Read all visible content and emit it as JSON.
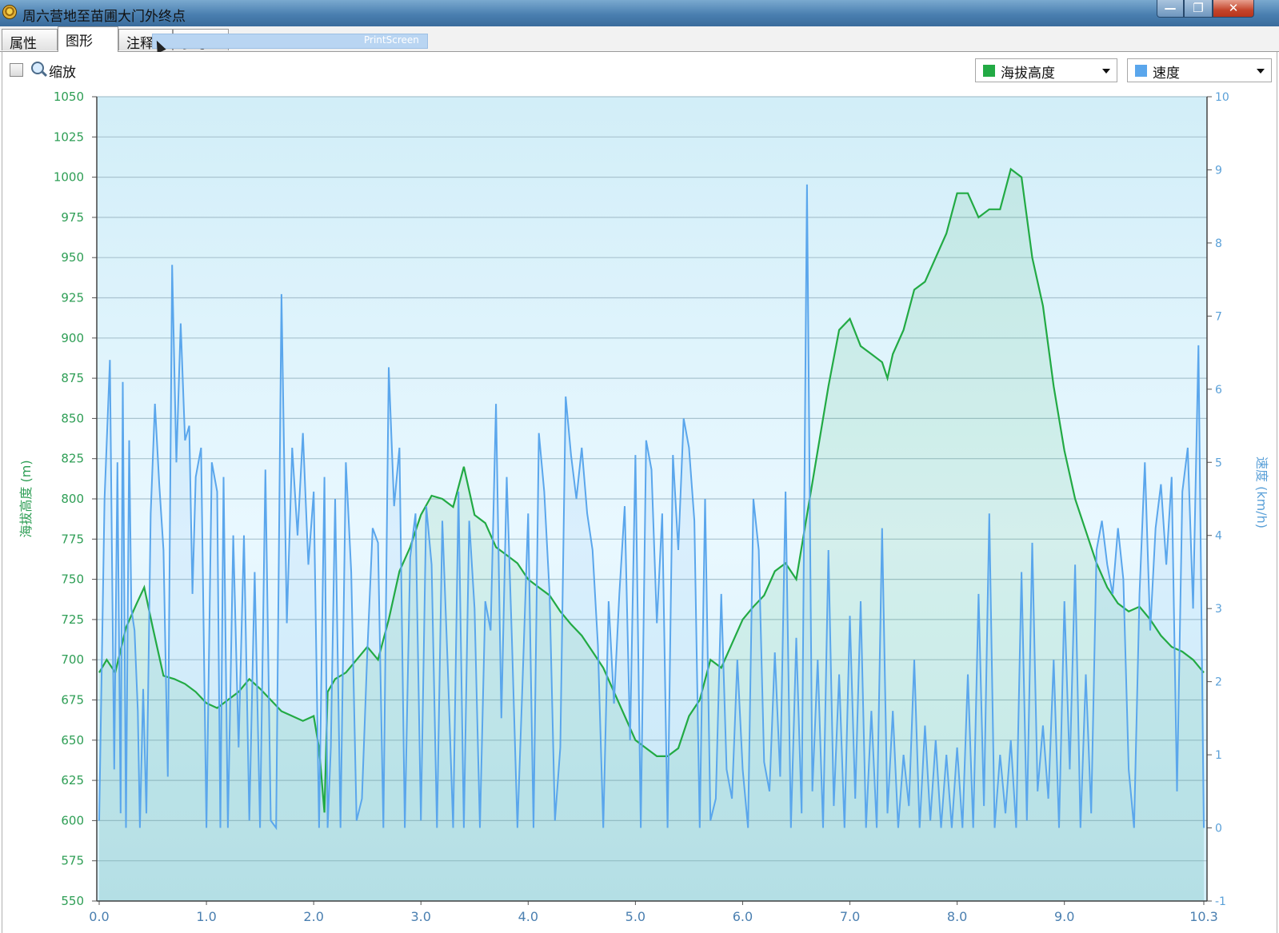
{
  "window": {
    "title": "周六营地至苗圃大门外终点"
  },
  "tabs": [
    {
      "label": "属性"
    },
    {
      "label": "图形"
    },
    {
      "label": "注释"
    },
    {
      "label": "参考"
    }
  ],
  "overlay": {
    "printscreen_label": "PrintScreen"
  },
  "toolbar": {
    "zoom_label": "缩放"
  },
  "selectors": {
    "left_label": "海拔高度",
    "right_label": "速度"
  },
  "colors": {
    "elevation": "#22aa44",
    "speed": "#5aa6ec",
    "plot_bg_top": "#d2eef8",
    "plot_bg_mid": "#e9f8ff"
  },
  "chart_data": {
    "type": "line",
    "xlabel": "",
    "x_ticks": [
      "0.0",
      "1.0",
      "2.0",
      "3.0",
      "4.0",
      "5.0",
      "6.0",
      "7.0",
      "8.0",
      "9.0",
      "10.3"
    ],
    "xlim": [
      0,
      10.3
    ],
    "grid": true,
    "left_axis": {
      "label": "海拔高度 (m)",
      "ylim": [
        550,
        1050
      ],
      "ticks": [
        550,
        575,
        600,
        625,
        650,
        675,
        700,
        725,
        750,
        775,
        800,
        825,
        850,
        875,
        900,
        925,
        950,
        975,
        1000,
        1025,
        1050
      ]
    },
    "right_axis": {
      "label": "速度 (km/h)",
      "ylim": [
        -1,
        10
      ],
      "ticks": [
        -1,
        0,
        1,
        2,
        3,
        4,
        5,
        6,
        7,
        8,
        9,
        10
      ]
    },
    "series": [
      {
        "name": "海拔高度",
        "axis": "left",
        "x": [
          0,
          0.07,
          0.15,
          0.25,
          0.35,
          0.42,
          0.5,
          0.6,
          0.7,
          0.8,
          0.9,
          1.0,
          1.1,
          1.2,
          1.3,
          1.4,
          1.5,
          1.6,
          1.7,
          1.8,
          1.9,
          2.0,
          2.05,
          2.1,
          2.13,
          2.2,
          2.3,
          2.4,
          2.5,
          2.6,
          2.7,
          2.8,
          2.9,
          3.0,
          3.1,
          3.2,
          3.3,
          3.4,
          3.5,
          3.6,
          3.7,
          3.8,
          3.9,
          4.0,
          4.1,
          4.2,
          4.3,
          4.4,
          4.5,
          4.6,
          4.7,
          4.8,
          4.9,
          5.0,
          5.1,
          5.2,
          5.3,
          5.4,
          5.5,
          5.6,
          5.7,
          5.8,
          5.9,
          6.0,
          6.1,
          6.2,
          6.3,
          6.4,
          6.5,
          6.6,
          6.7,
          6.8,
          6.9,
          7.0,
          7.1,
          7.2,
          7.3,
          7.35,
          7.4,
          7.5,
          7.6,
          7.7,
          7.8,
          7.9,
          8.0,
          8.1,
          8.2,
          8.3,
          8.4,
          8.5,
          8.6,
          8.7,
          8.8,
          8.9,
          9.0,
          9.1,
          9.2,
          9.3,
          9.4,
          9.5,
          9.6,
          9.7,
          9.8,
          9.9,
          10.0,
          10.1,
          10.2,
          10.3
        ],
        "y": [
          692,
          700,
          692,
          720,
          735,
          745,
          720,
          690,
          688,
          685,
          680,
          673,
          670,
          675,
          680,
          688,
          682,
          675,
          668,
          665,
          662,
          665,
          645,
          605,
          680,
          688,
          692,
          700,
          708,
          700,
          725,
          755,
          770,
          790,
          802,
          800,
          795,
          820,
          790,
          785,
          770,
          765,
          760,
          750,
          745,
          740,
          730,
          722,
          715,
          705,
          695,
          680,
          665,
          650,
          645,
          640,
          640,
          645,
          665,
          675,
          700,
          695,
          710,
          725,
          733,
          740,
          755,
          760,
          750,
          790,
          830,
          870,
          905,
          912,
          895,
          890,
          885,
          875,
          890,
          905,
          930,
          935,
          950,
          965,
          990,
          990,
          975,
          980,
          980,
          1005,
          1000,
          950,
          920,
          870,
          830,
          800,
          780,
          760,
          745,
          735,
          730,
          733,
          725,
          715,
          708,
          705,
          700,
          692
        ]
      },
      {
        "name": "速度",
        "axis": "right",
        "x": [
          0,
          0.05,
          0.1,
          0.14,
          0.17,
          0.2,
          0.22,
          0.25,
          0.28,
          0.3,
          0.33,
          0.36,
          0.38,
          0.41,
          0.44,
          0.48,
          0.52,
          0.56,
          0.6,
          0.64,
          0.68,
          0.72,
          0.76,
          0.8,
          0.84,
          0.87,
          0.9,
          0.95,
          1.0,
          1.05,
          1.1,
          1.13,
          1.16,
          1.2,
          1.25,
          1.3,
          1.35,
          1.4,
          1.45,
          1.5,
          1.55,
          1.6,
          1.65,
          1.7,
          1.75,
          1.8,
          1.85,
          1.9,
          1.95,
          2.0,
          2.05,
          2.1,
          2.13,
          2.16,
          2.2,
          2.25,
          2.3,
          2.35,
          2.4,
          2.45,
          2.5,
          2.55,
          2.6,
          2.65,
          2.7,
          2.75,
          2.8,
          2.85,
          2.9,
          2.95,
          3.0,
          3.05,
          3.1,
          3.15,
          3.2,
          3.25,
          3.3,
          3.35,
          3.4,
          3.45,
          3.5,
          3.55,
          3.6,
          3.65,
          3.7,
          3.75,
          3.8,
          3.85,
          3.9,
          3.95,
          4.0,
          4.05,
          4.1,
          4.15,
          4.2,
          4.25,
          4.3,
          4.35,
          4.4,
          4.45,
          4.5,
          4.55,
          4.6,
          4.65,
          4.7,
          4.75,
          4.8,
          4.85,
          4.9,
          4.95,
          5.0,
          5.05,
          5.1,
          5.15,
          5.2,
          5.25,
          5.3,
          5.35,
          5.4,
          5.45,
          5.5,
          5.55,
          5.6,
          5.65,
          5.7,
          5.75,
          5.8,
          5.85,
          5.9,
          5.95,
          6.0,
          6.05,
          6.1,
          6.15,
          6.2,
          6.25,
          6.3,
          6.35,
          6.4,
          6.45,
          6.5,
          6.55,
          6.6,
          6.65,
          6.7,
          6.75,
          6.8,
          6.85,
          6.9,
          6.95,
          7.0,
          7.05,
          7.1,
          7.15,
          7.2,
          7.25,
          7.3,
          7.35,
          7.4,
          7.45,
          7.5,
          7.55,
          7.6,
          7.65,
          7.7,
          7.75,
          7.8,
          7.85,
          7.9,
          7.95,
          8.0,
          8.05,
          8.1,
          8.15,
          8.2,
          8.25,
          8.3,
          8.35,
          8.4,
          8.45,
          8.5,
          8.55,
          8.6,
          8.65,
          8.7,
          8.75,
          8.8,
          8.85,
          8.9,
          8.95,
          9.0,
          9.05,
          9.1,
          9.15,
          9.2,
          9.25,
          9.3,
          9.35,
          9.4,
          9.45,
          9.5,
          9.55,
          9.6,
          9.65,
          9.7,
          9.75,
          9.8,
          9.85,
          9.9,
          9.95,
          10.0,
          10.05,
          10.1,
          10.15,
          10.2,
          10.25,
          10.3
        ],
        "y": [
          0.1,
          4.5,
          6.4,
          0.8,
          5.0,
          0.2,
          6.1,
          0.0,
          5.3,
          3.0,
          2.7,
          1.6,
          0.0,
          1.9,
          0.2,
          4.3,
          5.8,
          4.7,
          3.8,
          0.7,
          7.7,
          5.0,
          6.9,
          5.3,
          5.5,
          3.2,
          4.8,
          5.2,
          0.0,
          5.0,
          4.6,
          0.0,
          4.8,
          0.0,
          4.0,
          1.1,
          4.0,
          0.1,
          3.5,
          0.0,
          4.9,
          0.1,
          0.0,
          7.3,
          2.8,
          5.2,
          4.0,
          5.4,
          3.6,
          4.6,
          0.0,
          4.8,
          0.0,
          1.1,
          4.5,
          0.0,
          5.0,
          3.5,
          0.1,
          0.4,
          2.4,
          4.1,
          3.9,
          0.0,
          6.3,
          4.4,
          5.2,
          0.0,
          3.7,
          4.3,
          0.1,
          4.4,
          3.6,
          0.0,
          4.2,
          2.2,
          0.0,
          4.6,
          0.0,
          4.2,
          3.0,
          0.0,
          3.1,
          2.7,
          5.8,
          1.5,
          4.8,
          2.5,
          0.0,
          2.1,
          4.3,
          0.0,
          5.4,
          4.6,
          3.2,
          0.1,
          1.1,
          5.9,
          5.1,
          4.5,
          5.2,
          4.3,
          3.8,
          2.5,
          0.0,
          3.1,
          1.7,
          3.2,
          4.4,
          1.2,
          5.1,
          0.0,
          5.3,
          4.9,
          2.8,
          4.3,
          0.0,
          5.1,
          3.8,
          5.6,
          5.2,
          4.2,
          0.0,
          4.5,
          0.1,
          0.4,
          3.2,
          0.8,
          0.4,
          2.3,
          0.8,
          0.0,
          4.5,
          3.8,
          0.9,
          0.5,
          2.4,
          0.7,
          4.6,
          0.0,
          2.6,
          0.2,
          8.8,
          0.5,
          2.3,
          0.0,
          3.8,
          0.3,
          2.1,
          0.0,
          2.9,
          0.4,
          3.1,
          0.0,
          1.6,
          0.0,
          4.1,
          0.2,
          1.6,
          0.0,
          1.0,
          0.3,
          2.3,
          0.0,
          1.4,
          0.1,
          1.2,
          0.0,
          1.0,
          0.0,
          1.1,
          0.0,
          2.1,
          0.0,
          3.2,
          0.3,
          4.3,
          0.0,
          1.0,
          0.2,
          1.2,
          0.0,
          3.5,
          0.1,
          3.9,
          0.5,
          1.4,
          0.4,
          2.3,
          0.0,
          3.1,
          0.8,
          3.6,
          0.0,
          2.1,
          0.2,
          3.8,
          4.2,
          3.6,
          3.2,
          4.1,
          3.4,
          0.8,
          0.0,
          3.2,
          5.0,
          2.7,
          4.1,
          4.7,
          3.6,
          4.8,
          0.5,
          4.6,
          5.2,
          3.0,
          6.6,
          0.0
        ]
      }
    ]
  }
}
